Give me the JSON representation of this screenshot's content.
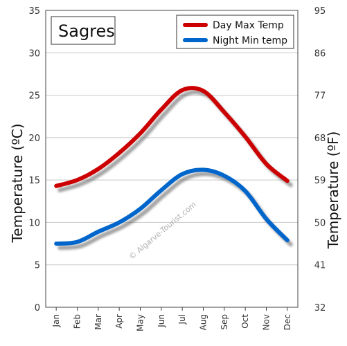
{
  "chart_data": {
    "type": "line",
    "title": "Sagres",
    "categories": [
      "Jan",
      "Feb",
      "Mar",
      "Apr",
      "May",
      "Jun",
      "Jul",
      "Aug",
      "Sep",
      "Oct",
      "Nov",
      "Dec"
    ],
    "series": [
      {
        "name": "Day Max Temp",
        "color": "#cc0000",
        "values": [
          14.3,
          15.0,
          16.3,
          18.2,
          20.5,
          23.3,
          25.6,
          25.5,
          23.0,
          20.1,
          16.9,
          14.9
        ]
      },
      {
        "name": "Night Min temp",
        "color": "#0066cc",
        "values": [
          7.5,
          7.7,
          8.9,
          10.0,
          11.6,
          13.8,
          15.7,
          16.2,
          15.5,
          13.7,
          10.4,
          7.9
        ]
      }
    ],
    "ylabel": "Temperature  (ºC)",
    "y2label": "Temperature  (ºF)",
    "ylim": [
      0,
      35
    ],
    "yticks": [
      0,
      5,
      10,
      15,
      20,
      25,
      30,
      35
    ],
    "y2lim": [
      32,
      95
    ],
    "y2ticks": [
      32,
      41,
      50,
      59,
      68,
      77,
      86,
      95
    ],
    "grid": true,
    "legend_position": "top-right",
    "watermark": "© Algarve-Tourist.com"
  }
}
